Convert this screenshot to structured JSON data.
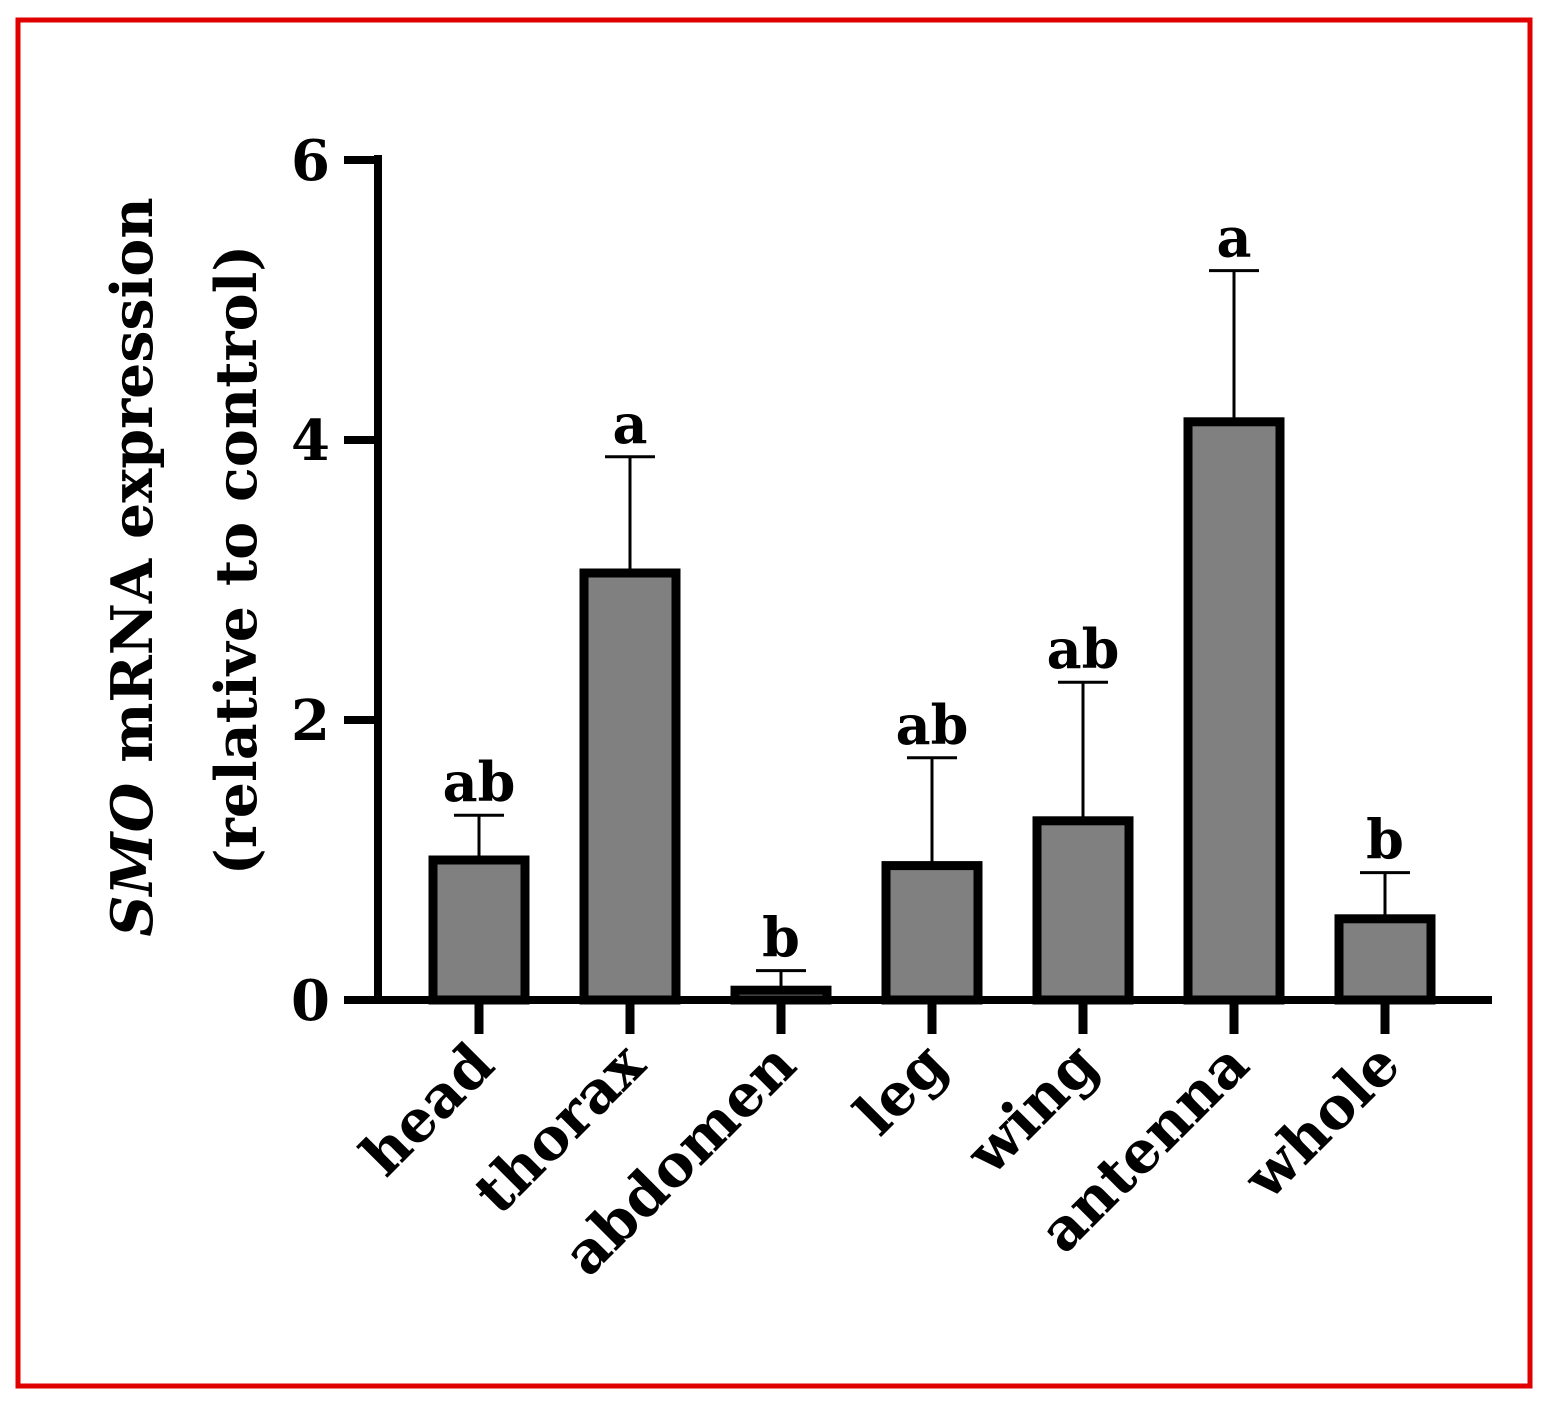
{
  "chart_data": {
    "type": "bar",
    "ylabel_italic": "SMO",
    "ylabel_rest": " mRNA expression",
    "ylabel_line2": "(relative to control)",
    "xlabel": "",
    "categories": [
      "head",
      "thorax",
      "abdomen",
      "leg",
      "wing",
      "antenna",
      "whole"
    ],
    "values": [
      1.0,
      3.05,
      0.07,
      0.96,
      1.28,
      4.13,
      0.58
    ],
    "errors": [
      0.32,
      0.83,
      0.14,
      0.77,
      0.99,
      1.08,
      0.33
    ],
    "significance": [
      "ab",
      "a",
      "b",
      "ab",
      "ab",
      "a",
      "b"
    ],
    "yticks": [
      "0",
      "2",
      "4",
      "6"
    ],
    "ylim": [
      0,
      6
    ],
    "colors": {
      "bar_fill": "#808080",
      "bar_edge": "#000000",
      "frame": "#e00000"
    },
    "grid": false,
    "legend": "none"
  }
}
